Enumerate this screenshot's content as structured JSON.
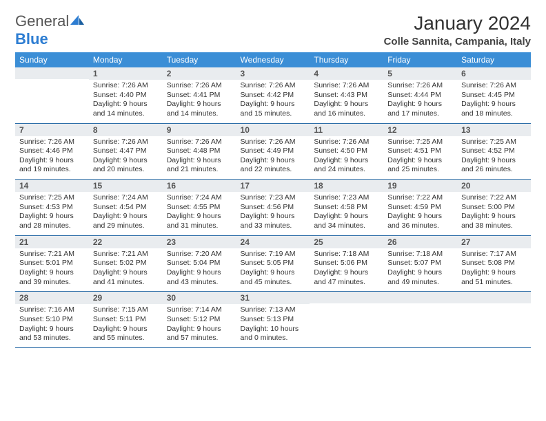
{
  "logo": {
    "word1": "General",
    "word2": "Blue"
  },
  "title": "January 2024",
  "location": "Colle Sannita, Campania, Italy",
  "colors": {
    "header_bg": "#3b8ed6",
    "header_fg": "#ffffff",
    "daynum_bg": "#e9ecef",
    "daynum_fg": "#555555",
    "row_border": "#2d6ea8",
    "body_text": "#333333",
    "logo_gray": "#555555",
    "logo_blue": "#2d7dd2"
  },
  "weekdays": [
    "Sunday",
    "Monday",
    "Tuesday",
    "Wednesday",
    "Thursday",
    "Friday",
    "Saturday"
  ],
  "first_weekday_index": 1,
  "days": [
    {
      "n": 1,
      "sunrise": "7:26 AM",
      "sunset": "4:40 PM",
      "daylight": "9 hours and 14 minutes."
    },
    {
      "n": 2,
      "sunrise": "7:26 AM",
      "sunset": "4:41 PM",
      "daylight": "9 hours and 14 minutes."
    },
    {
      "n": 3,
      "sunrise": "7:26 AM",
      "sunset": "4:42 PM",
      "daylight": "9 hours and 15 minutes."
    },
    {
      "n": 4,
      "sunrise": "7:26 AM",
      "sunset": "4:43 PM",
      "daylight": "9 hours and 16 minutes."
    },
    {
      "n": 5,
      "sunrise": "7:26 AM",
      "sunset": "4:44 PM",
      "daylight": "9 hours and 17 minutes."
    },
    {
      "n": 6,
      "sunrise": "7:26 AM",
      "sunset": "4:45 PM",
      "daylight": "9 hours and 18 minutes."
    },
    {
      "n": 7,
      "sunrise": "7:26 AM",
      "sunset": "4:46 PM",
      "daylight": "9 hours and 19 minutes."
    },
    {
      "n": 8,
      "sunrise": "7:26 AM",
      "sunset": "4:47 PM",
      "daylight": "9 hours and 20 minutes."
    },
    {
      "n": 9,
      "sunrise": "7:26 AM",
      "sunset": "4:48 PM",
      "daylight": "9 hours and 21 minutes."
    },
    {
      "n": 10,
      "sunrise": "7:26 AM",
      "sunset": "4:49 PM",
      "daylight": "9 hours and 22 minutes."
    },
    {
      "n": 11,
      "sunrise": "7:26 AM",
      "sunset": "4:50 PM",
      "daylight": "9 hours and 24 minutes."
    },
    {
      "n": 12,
      "sunrise": "7:25 AM",
      "sunset": "4:51 PM",
      "daylight": "9 hours and 25 minutes."
    },
    {
      "n": 13,
      "sunrise": "7:25 AM",
      "sunset": "4:52 PM",
      "daylight": "9 hours and 26 minutes."
    },
    {
      "n": 14,
      "sunrise": "7:25 AM",
      "sunset": "4:53 PM",
      "daylight": "9 hours and 28 minutes."
    },
    {
      "n": 15,
      "sunrise": "7:24 AM",
      "sunset": "4:54 PM",
      "daylight": "9 hours and 29 minutes."
    },
    {
      "n": 16,
      "sunrise": "7:24 AM",
      "sunset": "4:55 PM",
      "daylight": "9 hours and 31 minutes."
    },
    {
      "n": 17,
      "sunrise": "7:23 AM",
      "sunset": "4:56 PM",
      "daylight": "9 hours and 33 minutes."
    },
    {
      "n": 18,
      "sunrise": "7:23 AM",
      "sunset": "4:58 PM",
      "daylight": "9 hours and 34 minutes."
    },
    {
      "n": 19,
      "sunrise": "7:22 AM",
      "sunset": "4:59 PM",
      "daylight": "9 hours and 36 minutes."
    },
    {
      "n": 20,
      "sunrise": "7:22 AM",
      "sunset": "5:00 PM",
      "daylight": "9 hours and 38 minutes."
    },
    {
      "n": 21,
      "sunrise": "7:21 AM",
      "sunset": "5:01 PM",
      "daylight": "9 hours and 39 minutes."
    },
    {
      "n": 22,
      "sunrise": "7:21 AM",
      "sunset": "5:02 PM",
      "daylight": "9 hours and 41 minutes."
    },
    {
      "n": 23,
      "sunrise": "7:20 AM",
      "sunset": "5:04 PM",
      "daylight": "9 hours and 43 minutes."
    },
    {
      "n": 24,
      "sunrise": "7:19 AM",
      "sunset": "5:05 PM",
      "daylight": "9 hours and 45 minutes."
    },
    {
      "n": 25,
      "sunrise": "7:18 AM",
      "sunset": "5:06 PM",
      "daylight": "9 hours and 47 minutes."
    },
    {
      "n": 26,
      "sunrise": "7:18 AM",
      "sunset": "5:07 PM",
      "daylight": "9 hours and 49 minutes."
    },
    {
      "n": 27,
      "sunrise": "7:17 AM",
      "sunset": "5:08 PM",
      "daylight": "9 hours and 51 minutes."
    },
    {
      "n": 28,
      "sunrise": "7:16 AM",
      "sunset": "5:10 PM",
      "daylight": "9 hours and 53 minutes."
    },
    {
      "n": 29,
      "sunrise": "7:15 AM",
      "sunset": "5:11 PM",
      "daylight": "9 hours and 55 minutes."
    },
    {
      "n": 30,
      "sunrise": "7:14 AM",
      "sunset": "5:12 PM",
      "daylight": "9 hours and 57 minutes."
    },
    {
      "n": 31,
      "sunrise": "7:13 AM",
      "sunset": "5:13 PM",
      "daylight": "10 hours and 0 minutes."
    }
  ],
  "labels": {
    "sunrise": "Sunrise:",
    "sunset": "Sunset:",
    "daylight": "Daylight:"
  }
}
